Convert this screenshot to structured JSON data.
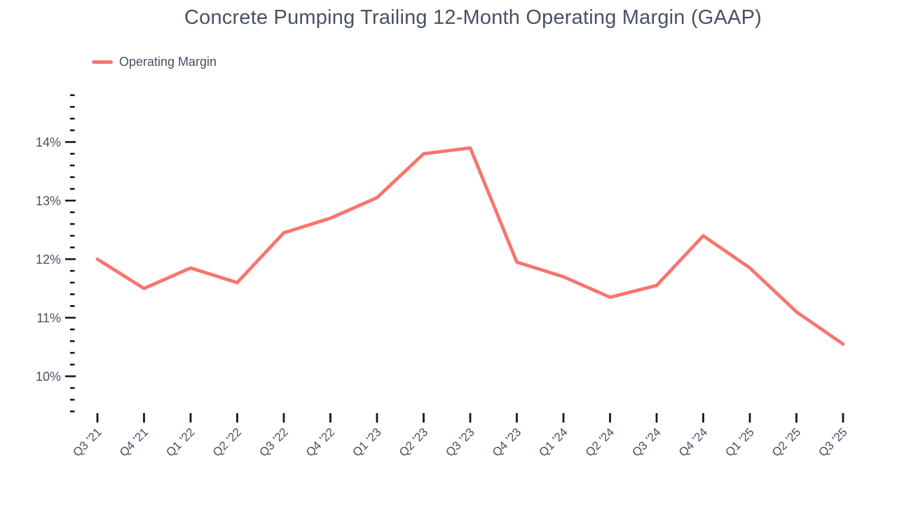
{
  "chart_data": {
    "type": "line",
    "title": "Concrete Pumping Trailing 12-Month Operating Margin (GAAP)",
    "categories": [
      "Q3 '21",
      "Q4 '21",
      "Q1 '22",
      "Q2 '22",
      "Q3 '22",
      "Q4 '22",
      "Q1 '23",
      "Q2 '23",
      "Q3 '23",
      "Q4 '23",
      "Q1 '24",
      "Q2 '24",
      "Q3 '24",
      "Q4 '24",
      "Q1 '25",
      "Q2 '25",
      "Q3 '25"
    ],
    "series": [
      {
        "name": "Operating Margin",
        "color": "#f8756e",
        "values": [
          12.0,
          11.5,
          11.85,
          11.6,
          12.45,
          12.7,
          13.05,
          13.8,
          13.9,
          11.95,
          11.7,
          11.35,
          11.55,
          12.4,
          11.85,
          11.1,
          10.55
        ]
      }
    ],
    "y_axis": {
      "unit": "%",
      "tick_min": 9.4,
      "tick_max": 14.8,
      "minor_step": 0.2,
      "major_ticks": [
        10,
        11,
        12,
        13,
        14
      ],
      "major_labels": [
        "10%",
        "11%",
        "12%",
        "13%",
        "14%"
      ]
    },
    "x_axis": {
      "label_rotation_deg": -45
    },
    "legend": {
      "position": "top-left",
      "items": [
        "Operating Margin"
      ]
    },
    "grid": false,
    "background": "#ffffff",
    "text_color": "#475163",
    "tick_color": "#16181d",
    "ylim": [
      9.4,
      14.8
    ]
  }
}
